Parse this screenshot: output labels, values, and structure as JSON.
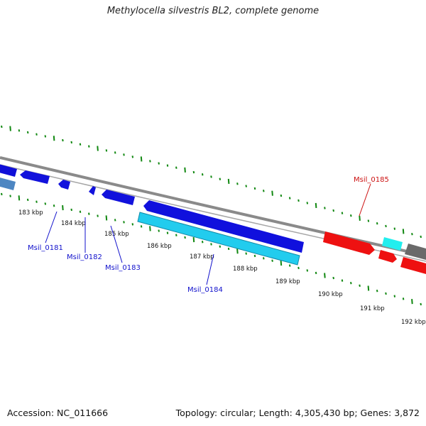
{
  "title": "Methylocella silvestris BL2, complete genome",
  "footer": {
    "accession": "Accession: NC_011666",
    "summary": "Topology: circular; Length: 4,305,430 bp; Genes: 3,872"
  },
  "colors": {
    "forward_gene": "#1010dd",
    "reverse_gene": "#22ccee",
    "highlight_gene": "#ee1111",
    "other_gene": "#666666",
    "backbone": "#808080",
    "ticks": "#118811",
    "label_blue": "#1111cc",
    "label_red": "#cc1111"
  },
  "scale_labels": [
    "183 kbp",
    "184 kbp",
    "185 kbp",
    "186 kbp",
    "187 kbp",
    "188 kbp",
    "189 kbp",
    "190 kbp",
    "191 kbp",
    "192 kbp"
  ],
  "gene_labels": [
    {
      "name": "Msil_0181",
      "color": "blue"
    },
    {
      "name": "Msil_0182",
      "color": "blue"
    },
    {
      "name": "Msil_0183",
      "color": "blue"
    },
    {
      "name": "Msil_0184",
      "color": "blue"
    },
    {
      "name": "Msil_0185",
      "color": "red"
    }
  ]
}
